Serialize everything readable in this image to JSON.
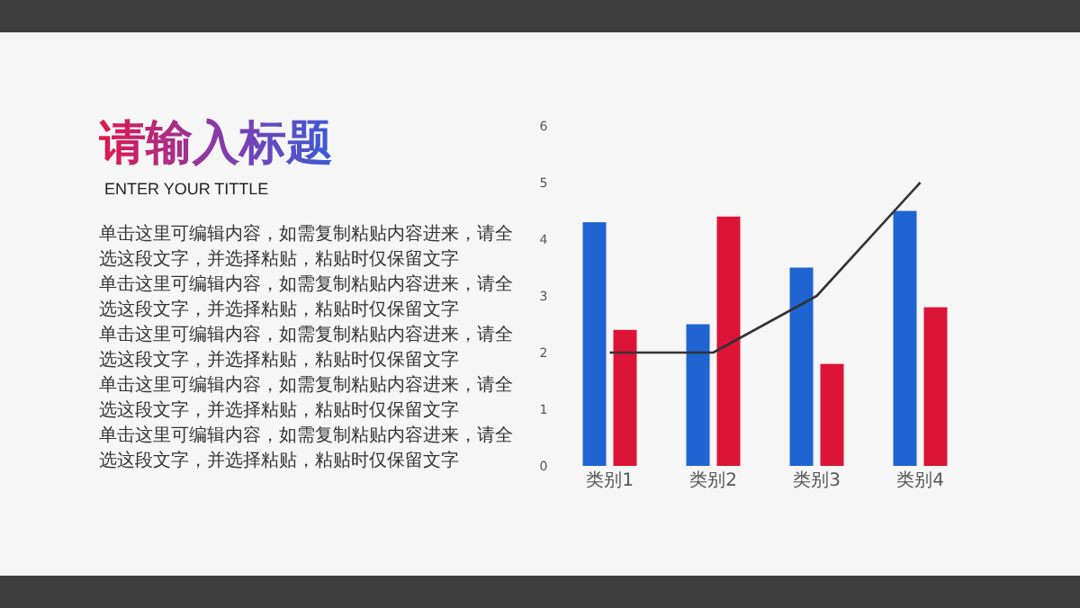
{
  "chart_data": {
    "type": "bar",
    "title": "请输入标题",
    "subtitle": "ENTER YOUR TITTLE",
    "annotations": [
      "单击这里可编辑内容，如需复制粘贴内容进来，请全选这段文字，并选择粘贴，粘贴时仅保留文字",
      "单击这里可编辑内容，如需复制粘贴内容进来，请全选这段文字，并选择粘贴，粘贴时仅保留文字",
      "单击这里可编辑内容，如需复制粘贴内容进来，请全选这段文字，并选择粘贴，粘贴时仅保留文字",
      "单击这里可编辑内容，如需复制粘贴内容进来，请全选这段文字，并选择粘贴，粘贴时仅保留文字",
      "单击这里可编辑内容，如需复制粘贴内容进来，请全选这段文字，并选择粘贴，粘贴时仅保留文字"
    ],
    "categories": [
      "类别1",
      "类别2",
      "类别3",
      "类别4"
    ],
    "series": [
      {
        "color": "#1f64d0",
        "values": [
          4.3,
          2.5,
          3.5,
          4.5
        ]
      },
      {
        "color": "#dc1438",
        "values": [
          2.4,
          4.4,
          1.8,
          2.8
        ]
      },
      {
        "type": "line",
        "color": "#333333",
        "values": [
          2,
          2,
          3,
          5
        ]
      }
    ],
    "ylim": [
      0,
      6
    ],
    "yticks": [
      0,
      1,
      2,
      3,
      4,
      5,
      6
    ]
  }
}
